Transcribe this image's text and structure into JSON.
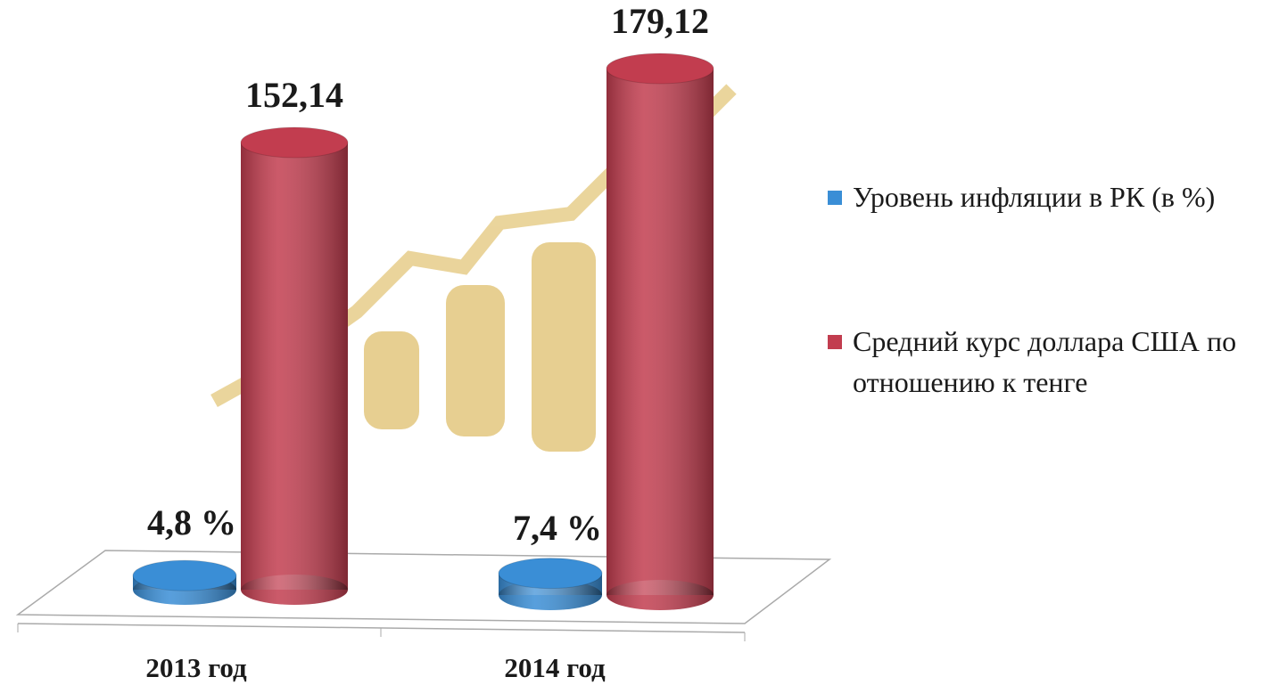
{
  "chart_data": {
    "type": "cylinder",
    "categories": [
      "2013 год",
      "2014 год"
    ],
    "series": [
      {
        "name": "Уровень инфляции в РК (в %)",
        "color": "#3a8ed6",
        "values": [
          4.8,
          7.4
        ],
        "value_labels": [
          "4,8 %",
          "7,4 %"
        ]
      },
      {
        "name": "Средний курс доллара США по отношению к тенге",
        "color": "#c23d4f",
        "values": [
          152.14,
          179.12
        ],
        "value_labels": [
          "152,14",
          "179,12"
        ]
      }
    ]
  }
}
